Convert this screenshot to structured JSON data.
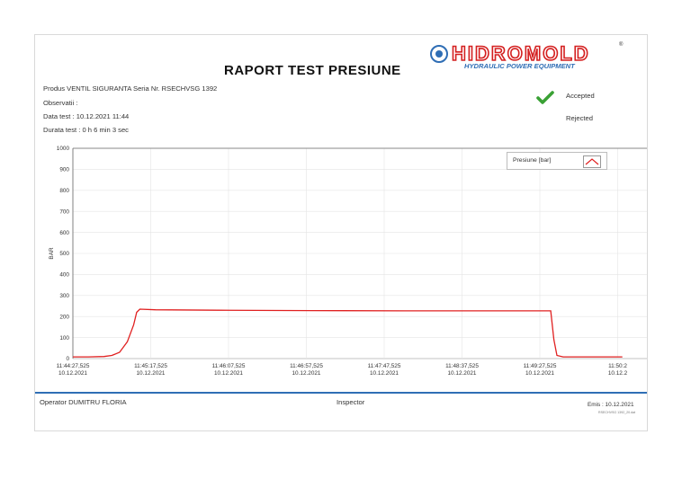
{
  "report": {
    "title": "RAPORT TEST PRESIUNE",
    "logo": {
      "brand": "HIDROMOLD",
      "tagline": "HYDRAULIC POWER EQUIPMENT",
      "registered": "®"
    },
    "product_line": "Produs VENTIL SIGURANTA    Seria Nr.  RSECHVSG 1392",
    "observations": "Observatii :",
    "test_date": "Data test :  10.12.2021 11:44",
    "duration": "Durata test : 0 h   6 min 3 sec",
    "status": {
      "accepted": "Accepted",
      "rejected": "Rejected",
      "result": "accepted"
    },
    "operator": "Operator  DUMITRU FLORIA",
    "inspector": "Inspector",
    "emis": "Emis :   10.12.2021",
    "emis_sub": "RSECHVSG 1392_20.dat",
    "colors": {
      "line": "#e02020",
      "accent": "#2f6eb5",
      "check": "#3aa135"
    }
  },
  "chart_data": {
    "type": "line",
    "title": "",
    "xlabel": "",
    "ylabel": "BAR",
    "ylim": [
      0,
      1000
    ],
    "yticks": [
      0,
      100,
      200,
      300,
      400,
      500,
      600,
      700,
      800,
      900,
      1000
    ],
    "xticks": [
      {
        "time": "11:44:27,525",
        "date": "10.12.2021"
      },
      {
        "time": "11:45:17,525",
        "date": "10.12.2021"
      },
      {
        "time": "11:46:07,525",
        "date": "10.12.2021"
      },
      {
        "time": "11:46:57,525",
        "date": "10.12.2021"
      },
      {
        "time": "11:47:47,525",
        "date": "10.12.2021"
      },
      {
        "time": "11:48:37,525",
        "date": "10.12.2021"
      },
      {
        "time": "11:49:27,525",
        "date": "10.12.2021"
      },
      {
        "time": "11:50:2",
        "date": "10.12.2"
      }
    ],
    "grid": true,
    "legend": "top-right",
    "series": [
      {
        "name": "Presiune  [bar]",
        "points": [
          [
            "11:44:27",
            8
          ],
          [
            "11:44:37",
            8
          ],
          [
            "11:44:47",
            10
          ],
          [
            "11:44:52",
            15
          ],
          [
            "11:44:57",
            30
          ],
          [
            "11:45:02",
            80
          ],
          [
            "11:45:06",
            160
          ],
          [
            "11:45:08",
            220
          ],
          [
            "11:45:10",
            235
          ],
          [
            "11:45:20",
            232
          ],
          [
            "11:46:00",
            230
          ],
          [
            "11:47:00",
            228
          ],
          [
            "11:48:00",
            227
          ],
          [
            "11:49:00",
            227
          ],
          [
            "11:49:34",
            227
          ],
          [
            "11:49:36",
            90
          ],
          [
            "11:49:38",
            15
          ],
          [
            "11:49:42",
            8
          ],
          [
            "11:50:20",
            8
          ]
        ]
      }
    ]
  }
}
